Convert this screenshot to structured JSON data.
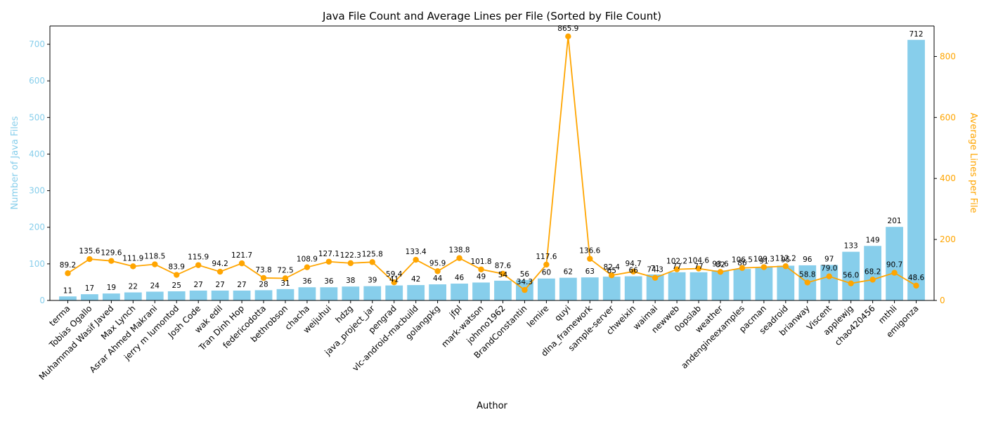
{
  "chart_data": {
    "type": "bar+line",
    "title": "Java File Count and Average Lines per File (Sorted by File Count)",
    "xlabel": "Author",
    "ylabel_left": "Number of Java Files",
    "ylabel_right": "Average Lines per File",
    "ylim_left": [
      0,
      750
    ],
    "ylim_right": [
      0,
      900
    ],
    "yticks_left": [
      0,
      100,
      200,
      300,
      400,
      500,
      600,
      700
    ],
    "yticks_right": [
      0,
      200,
      400,
      600,
      800
    ],
    "grid": false,
    "colors": {
      "bars": "#87ceeb",
      "line": "#ffa500",
      "left_axis": "#87ceeb",
      "right_axis": "#ffa500"
    },
    "categories": [
      "terma",
      "Tobias Ogallo",
      "Muhammad Wasif Javed",
      "Max Lynch",
      "Asrar Ahmed Makrani",
      "jerry m lumontod",
      "Josh Code",
      "wak edil",
      "Tran Dinh Hop",
      "federicodotta",
      "bethrobson",
      "chacha",
      "weijuhui",
      "hdzg",
      "java_project_jar",
      "pengrad",
      "vlc-android-macbuild",
      "golangpkg",
      "jfpl",
      "mark-watson",
      "johnno1962",
      "BrandConstantin",
      "lemire",
      "quyi",
      "dlna_framework",
      "sample-server",
      "chweixin",
      "waimai",
      "newweb",
      "0opslab",
      "weather",
      "andengineexamples",
      "pacman",
      "seadroid",
      "brianway",
      "Viscent",
      "applewjg",
      "chao420456",
      "mthli",
      "emigonza"
    ],
    "series": [
      {
        "name": "",
        "kind": "bar",
        "axis": "left",
        "values": [
          11,
          17,
          19,
          22,
          24,
          25,
          27,
          27,
          27,
          28,
          31,
          36,
          36,
          38,
          39,
          41,
          42,
          44,
          46,
          49,
          54,
          56,
          60,
          62,
          63,
          65,
          66,
          71,
          77,
          77,
          82,
          86,
          91,
          95,
          96,
          97,
          133,
          149,
          201,
          712
        ]
      },
      {
        "name": "",
        "kind": "line",
        "axis": "right",
        "values": [
          89.2,
          135.6,
          129.6,
          111.9,
          118.5,
          83.9,
          115.9,
          94.2,
          121.7,
          73.8,
          72.5,
          108.9,
          127.1,
          122.3,
          125.8,
          59.4,
          133.4,
          95.9,
          138.8,
          101.8,
          87.6,
          34.3,
          117.6,
          865.9,
          136.6,
          82.4,
          94.7,
          74.3,
          102.2,
          104.6,
          93.6,
          106.5,
          109.3,
          112.2,
          58.8,
          79.0,
          56.0,
          68.2,
          90.7,
          48.6
        ]
      }
    ],
    "bar_labels": [
      "11",
      "17",
      "19",
      "22",
      "24",
      "25",
      "27",
      "27",
      "27",
      "28",
      "31",
      "36",
      "36",
      "38",
      "39",
      "41",
      "42",
      "44",
      "46",
      "49",
      "54",
      "56",
      "60",
      "62",
      "63",
      "65",
      "66",
      "71",
      "77",
      "77",
      "82",
      "86",
      "91",
      "95",
      "96",
      "97",
      "133",
      "149",
      "201",
      "712"
    ],
    "line_labels": [
      "89.2",
      "135.6",
      "129.6",
      "111.9",
      "118.5",
      "83.9",
      "115.9",
      "94.2",
      "121.7",
      "73.8",
      "72.5",
      "108.9",
      "127.1",
      "122.3",
      "125.8",
      "59.4",
      "133.4",
      "95.9",
      "138.8",
      "101.8",
      "87.6",
      "34.3",
      "117.6",
      "865.9",
      "136.6",
      "82.4",
      "94.7",
      "74.3",
      "102.2",
      "104.6",
      "93.6",
      "106.5",
      "109.3",
      "112.2",
      "58.8",
      "79.0",
      "56.0",
      "68.2",
      "90.7",
      "48.6"
    ]
  }
}
